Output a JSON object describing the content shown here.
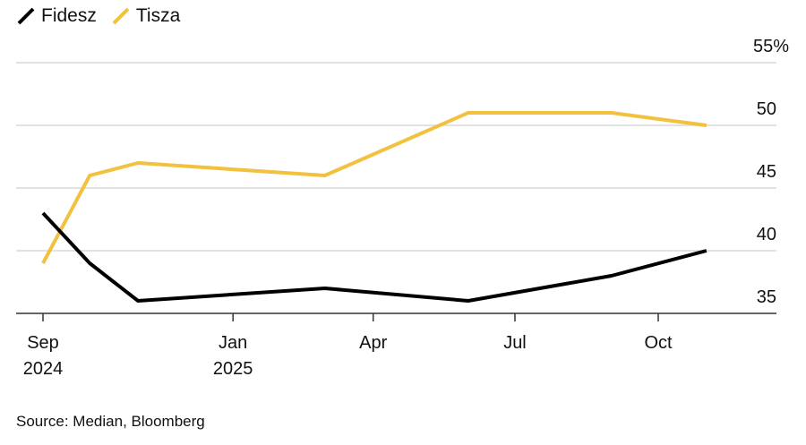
{
  "chart_data": {
    "type": "line",
    "title": "",
    "xlabel": "",
    "ylabel": "",
    "ylim": [
      35,
      55
    ],
    "yticks": [
      {
        "value": 55,
        "label": "55%"
      },
      {
        "value": 50,
        "label": "50"
      },
      {
        "value": 45,
        "label": "45"
      },
      {
        "value": 40,
        "label": "40"
      },
      {
        "value": 35,
        "label": "35"
      }
    ],
    "xticks": [
      {
        "date": "2024-09-01",
        "label": "Sep",
        "sublabel": "2024"
      },
      {
        "date": "2025-01-01",
        "label": "Jan",
        "sublabel": "2025"
      },
      {
        "date": "2025-04-01",
        "label": "Apr",
        "sublabel": ""
      },
      {
        "date": "2025-07-01",
        "label": "Jul",
        "sublabel": ""
      },
      {
        "date": "2025-10-01",
        "label": "Oct",
        "sublabel": ""
      }
    ],
    "xrange": [
      "2024-08-15",
      "2025-12-01"
    ],
    "x": [
      "2024-09-01",
      "2024-10-01",
      "2024-11-01",
      "2025-03-01",
      "2025-06-01",
      "2025-09-01",
      "2025-11-01"
    ],
    "series": [
      {
        "name": "Fidesz",
        "color": "#000000",
        "values": [
          43,
          39,
          36,
          37,
          36,
          38,
          40
        ]
      },
      {
        "name": "Tisza",
        "color": "#f2c13d",
        "values": [
          39,
          46,
          47,
          46,
          51,
          51,
          50
        ]
      }
    ],
    "legend_position": "top-left",
    "grid": true
  },
  "legend": [
    {
      "name": "Fidesz",
      "color": "#000000"
    },
    {
      "name": "Tisza",
      "color": "#f2c13d"
    }
  ],
  "source": "Source: Median, Bloomberg"
}
